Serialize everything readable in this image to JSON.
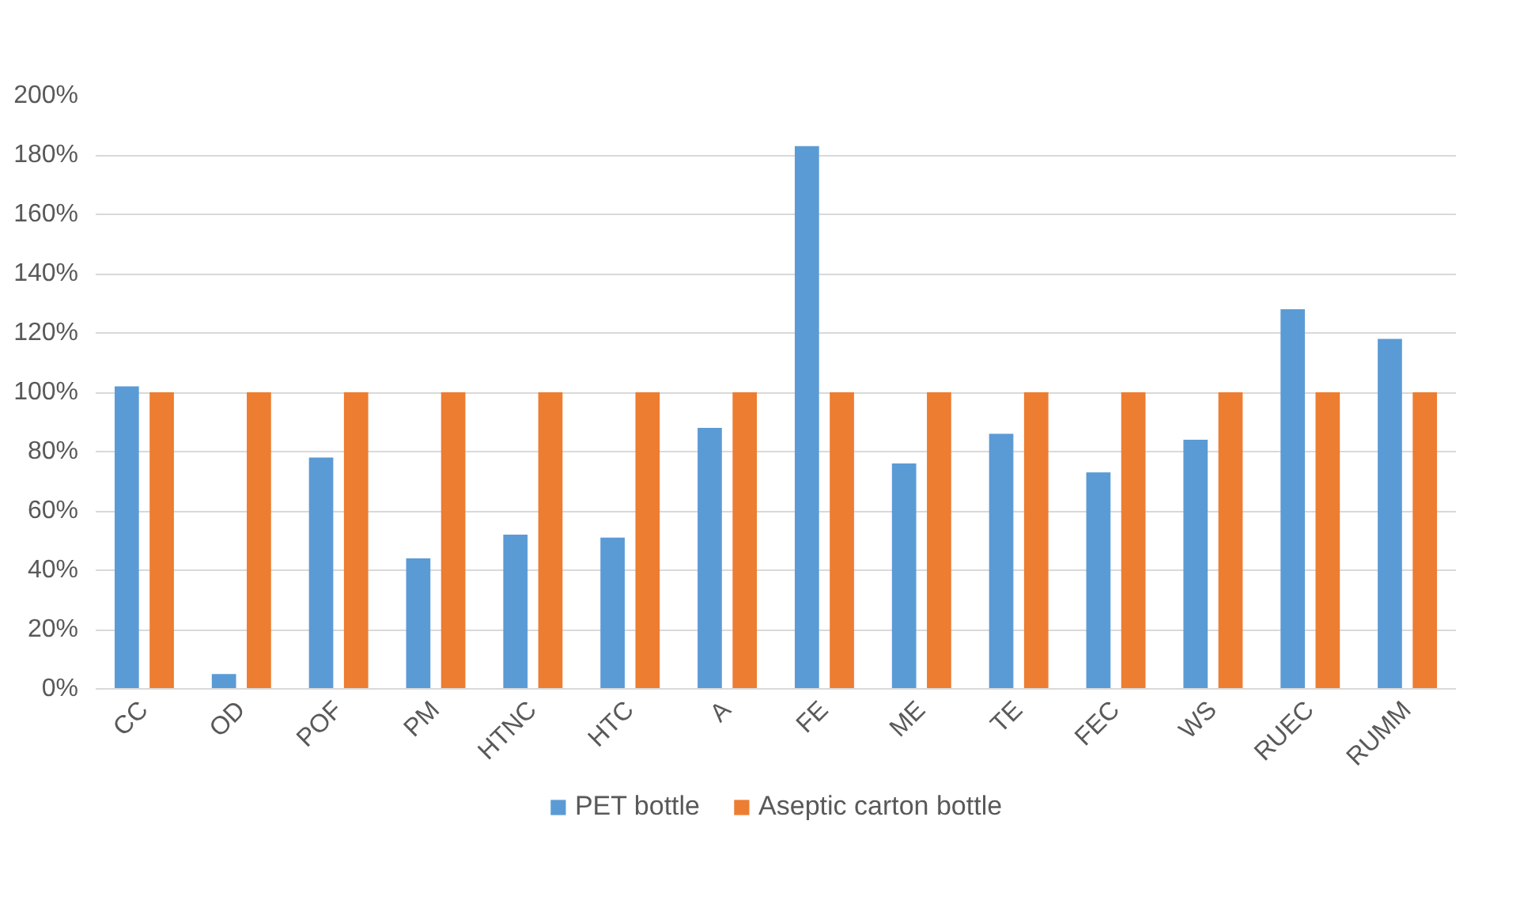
{
  "chart_data": {
    "type": "bar",
    "categories": [
      "CC",
      "OD",
      "POF",
      "PM",
      "HTNC",
      "HTC",
      "A",
      "FE",
      "ME",
      "TE",
      "FEC",
      "WS",
      "RUEC",
      "RUMM"
    ],
    "series": [
      {
        "name": "PET bottle",
        "color": "#5b9bd5",
        "values": [
          102,
          5,
          78,
          44,
          52,
          51,
          88,
          183,
          76,
          86,
          73,
          84,
          128,
          118
        ]
      },
      {
        "name": "Aseptic carton bottle",
        "color": "#ed7d31",
        "values": [
          100,
          100,
          100,
          100,
          100,
          100,
          100,
          100,
          100,
          100,
          100,
          100,
          100,
          100
        ]
      }
    ],
    "ylim": [
      0,
      200
    ],
    "yticks": [
      {
        "value": 0,
        "label": "0%"
      },
      {
        "value": 20,
        "label": "20%"
      },
      {
        "value": 40,
        "label": "40%"
      },
      {
        "value": 60,
        "label": "60%"
      },
      {
        "value": 80,
        "label": "80%"
      },
      {
        "value": 100,
        "label": "100%"
      },
      {
        "value": 120,
        "label": "120%"
      },
      {
        "value": 140,
        "label": "140%"
      },
      {
        "value": 160,
        "label": "160%"
      },
      {
        "value": 180,
        "label": "180%"
      },
      {
        "value": 200,
        "label": "200%"
      }
    ],
    "grid": "y",
    "legend": "bottom"
  }
}
